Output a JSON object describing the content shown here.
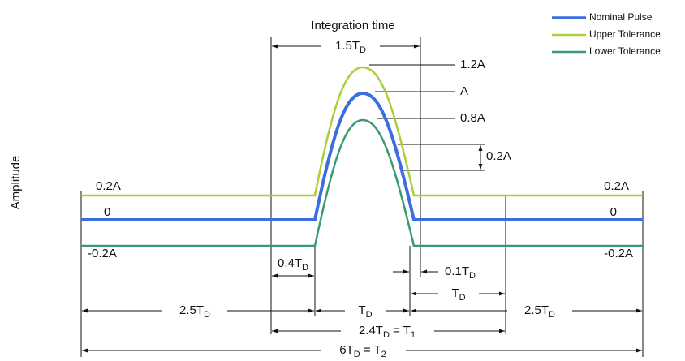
{
  "title": "Integration time",
  "y_axis_label": "Amplitude",
  "legend": [
    "Nominal Pulse",
    "Upper Tolerance",
    "Lower Tolerance"
  ],
  "level_labels": {
    "left": [
      "0.2A",
      "0",
      "-0.2A"
    ],
    "right": [
      "0.2A",
      "0",
      "-0.2A"
    ]
  },
  "peak_labels": [
    "1.2A",
    "A",
    "0.8A"
  ],
  "tolerance_label": "0.2A",
  "dimensions": [
    [
      "1.5T",
      "D"
    ],
    [
      "0.4T",
      "D"
    ],
    [
      "0.1T",
      "D"
    ],
    [
      "T",
      "D"
    ],
    [
      "2.5T",
      "D"
    ],
    [
      "T",
      "D"
    ],
    [
      "2.5T",
      "D"
    ],
    [
      "2.4T",
      "D",
      " = T",
      "1"
    ],
    [
      "6T",
      "D",
      " = T",
      "2"
    ]
  ]
}
